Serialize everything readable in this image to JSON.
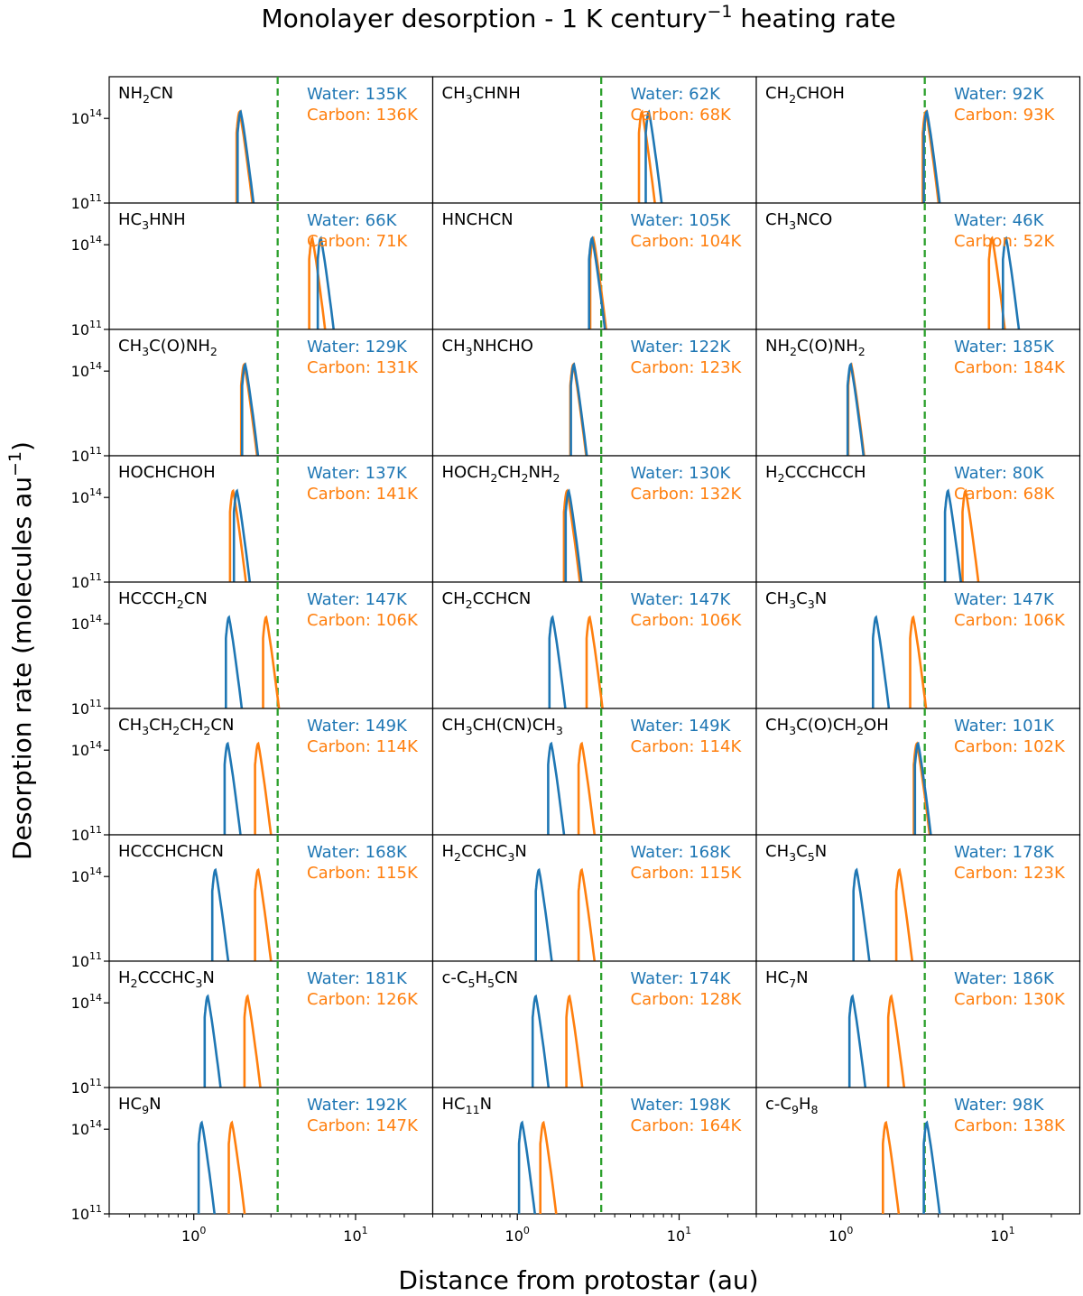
{
  "chart_data": {
    "type": "line",
    "title": "Monolayer desorption - 1 K century",
    "title_sup": "−1",
    "title_suffix": " heating rate",
    "xlabel": "Distance from protostar (au)",
    "ylabel": "Desorption rate (molecules au",
    "ylabel_sup": "−1",
    "ylabel_suffix": ")",
    "xscale": "log",
    "yscale": "log",
    "xlim": [
      0.3,
      30
    ],
    "ylim": [
      100000000000.0,
      3000000000000000.0
    ],
    "x_tick_labels": [
      {
        "base": "10",
        "exp": "0",
        "value": 1
      },
      {
        "base": "10",
        "exp": "1",
        "value": 10
      }
    ],
    "y_tick_labels": [
      {
        "base": "10",
        "exp": "14",
        "value": 100000000000000.0
      },
      {
        "base": "10",
        "exp": "11",
        "value": 100000000000.0
      }
    ],
    "grid": false,
    "layout": "9 rows x 3 columns, shared axes",
    "colors": {
      "water": "#1f77b4",
      "carbon": "#ff7f0e",
      "reference_line": "#2ca02c"
    },
    "reference_line": {
      "x": 3.3,
      "style": "dashed"
    },
    "series_labels": {
      "water": "Water",
      "carbon": "Carbon"
    },
    "panels": [
      {
        "molecule": [
          [
            "NH",
            ""
          ],
          [
            "2",
            "sub"
          ],
          [
            "CN",
            ""
          ]
        ],
        "water_temp": "135K",
        "carbon_temp": "136K",
        "water_peak": 1.95,
        "carbon_peak": 1.92
      },
      {
        "molecule": [
          [
            "CH",
            ""
          ],
          [
            "3",
            "sub"
          ],
          [
            "CHNH",
            ""
          ]
        ],
        "water_temp": "62K",
        "carbon_temp": "68K",
        "water_peak": 6.5,
        "carbon_peak": 5.9
      },
      {
        "molecule": [
          [
            "CH",
            ""
          ],
          [
            "2",
            "sub"
          ],
          [
            "CHOH",
            ""
          ]
        ],
        "water_temp": "92K",
        "carbon_temp": "93K",
        "water_peak": 3.4,
        "carbon_peak": 3.35
      },
      {
        "molecule": [
          [
            "HC",
            ""
          ],
          [
            "3",
            "sub"
          ],
          [
            "HNH",
            ""
          ]
        ],
        "water_temp": "66K",
        "carbon_temp": "71K",
        "water_peak": 6.1,
        "carbon_peak": 5.4
      },
      {
        "molecule": [
          [
            "HNCHCN",
            ""
          ]
        ],
        "water_temp": "105K",
        "carbon_temp": "104K",
        "water_peak": 2.9,
        "carbon_peak": 2.95
      },
      {
        "molecule": [
          [
            "CH",
            ""
          ],
          [
            "3",
            "sub"
          ],
          [
            "NCO",
            ""
          ]
        ],
        "water_temp": "46K",
        "carbon_temp": "52K",
        "water_peak": 10.5,
        "carbon_peak": 8.6
      },
      {
        "molecule": [
          [
            "CH",
            ""
          ],
          [
            "3",
            "sub"
          ],
          [
            "C(O)NH",
            ""
          ],
          [
            "2",
            "sub"
          ]
        ],
        "water_temp": "129K",
        "carbon_temp": "131K",
        "water_peak": 2.08,
        "carbon_peak": 2.05
      },
      {
        "molecule": [
          [
            "CH",
            ""
          ],
          [
            "3",
            "sub"
          ],
          [
            "NHCHO",
            ""
          ]
        ],
        "water_temp": "122K",
        "carbon_temp": "123K",
        "water_peak": 2.24,
        "carbon_peak": 2.22
      },
      {
        "molecule": [
          [
            "NH",
            ""
          ],
          [
            "2",
            "sub"
          ],
          [
            "C(O)NH",
            ""
          ],
          [
            "2",
            "sub"
          ]
        ],
        "water_temp": "185K",
        "carbon_temp": "184K",
        "water_peak": 1.15,
        "carbon_peak": 1.16
      },
      {
        "molecule": [
          [
            "HOCHCHOH",
            ""
          ]
        ],
        "water_temp": "137K",
        "carbon_temp": "141K",
        "water_peak": 1.85,
        "carbon_peak": 1.75
      },
      {
        "molecule": [
          [
            "HOCH",
            ""
          ],
          [
            "2",
            "sub"
          ],
          [
            "CH",
            ""
          ],
          [
            "2",
            "sub"
          ],
          [
            "NH",
            ""
          ],
          [
            "2",
            "sub"
          ]
        ],
        "water_temp": "130K",
        "carbon_temp": "132K",
        "water_peak": 2.08,
        "carbon_peak": 2.03
      },
      {
        "molecule": [
          [
            "H",
            ""
          ],
          [
            "2",
            "sub"
          ],
          [
            "CCCHCCH",
            ""
          ]
        ],
        "water_temp": "80K",
        "carbon_temp": "68K",
        "water_peak": 4.6,
        "carbon_peak": 5.9
      },
      {
        "molecule": [
          [
            "HCCCH",
            ""
          ],
          [
            "2",
            "sub"
          ],
          [
            "CN",
            ""
          ]
        ],
        "water_temp": "147K",
        "carbon_temp": "106K",
        "water_peak": 1.65,
        "carbon_peak": 2.8
      },
      {
        "molecule": [
          [
            "CH",
            ""
          ],
          [
            "2",
            "sub"
          ],
          [
            "CCHCN",
            ""
          ]
        ],
        "water_temp": "147K",
        "carbon_temp": "106K",
        "water_peak": 1.65,
        "carbon_peak": 2.8
      },
      {
        "molecule": [
          [
            "CH",
            ""
          ],
          [
            "3",
            "sub"
          ],
          [
            "C",
            ""
          ],
          [
            "3",
            "sub"
          ],
          [
            "N",
            ""
          ]
        ],
        "water_temp": "147K",
        "carbon_temp": "106K",
        "water_peak": 1.65,
        "carbon_peak": 2.8
      },
      {
        "molecule": [
          [
            "CH",
            ""
          ],
          [
            "3",
            "sub"
          ],
          [
            "CH",
            ""
          ],
          [
            "2",
            "sub"
          ],
          [
            "CH",
            ""
          ],
          [
            "2",
            "sub"
          ],
          [
            "CN",
            ""
          ]
        ],
        "water_temp": "149K",
        "carbon_temp": "114K",
        "water_peak": 1.62,
        "carbon_peak": 2.5
      },
      {
        "molecule": [
          [
            "CH",
            ""
          ],
          [
            "3",
            "sub"
          ],
          [
            "CH(CN)CH",
            ""
          ],
          [
            "3",
            "sub"
          ]
        ],
        "water_temp": "149K",
        "carbon_temp": "114K",
        "water_peak": 1.62,
        "carbon_peak": 2.5
      },
      {
        "molecule": [
          [
            "CH",
            ""
          ],
          [
            "3",
            "sub"
          ],
          [
            "C(O)CH",
            ""
          ],
          [
            "2",
            "sub"
          ],
          [
            "OH",
            ""
          ]
        ],
        "water_temp": "101K",
        "carbon_temp": "102K",
        "water_peak": 3.0,
        "carbon_peak": 2.95
      },
      {
        "molecule": [
          [
            "HCCCHCHCN",
            ""
          ]
        ],
        "water_temp": "168K",
        "carbon_temp": "115K",
        "water_peak": 1.36,
        "carbon_peak": 2.5
      },
      {
        "molecule": [
          [
            "H",
            ""
          ],
          [
            "2",
            "sub"
          ],
          [
            "CCHC",
            ""
          ],
          [
            "3",
            "sub"
          ],
          [
            "N",
            ""
          ]
        ],
        "water_temp": "168K",
        "carbon_temp": "115K",
        "water_peak": 1.36,
        "carbon_peak": 2.5
      },
      {
        "molecule": [
          [
            "CH",
            ""
          ],
          [
            "3",
            "sub"
          ],
          [
            "C",
            ""
          ],
          [
            "5",
            "sub"
          ],
          [
            "N",
            ""
          ]
        ],
        "water_temp": "178K",
        "carbon_temp": "123K",
        "water_peak": 1.25,
        "carbon_peak": 2.3
      },
      {
        "molecule": [
          [
            "H",
            ""
          ],
          [
            "2",
            "sub"
          ],
          [
            "CCCHC",
            ""
          ],
          [
            "3",
            "sub"
          ],
          [
            "N",
            ""
          ]
        ],
        "water_temp": "181K",
        "carbon_temp": "126K",
        "water_peak": 1.22,
        "carbon_peak": 2.15
      },
      {
        "molecule": [
          [
            "c-C",
            ""
          ],
          [
            "5",
            "sub"
          ],
          [
            "H",
            ""
          ],
          [
            "5",
            "sub"
          ],
          [
            "CN",
            ""
          ]
        ],
        "water_temp": "174K",
        "carbon_temp": "128K",
        "water_peak": 1.3,
        "carbon_peak": 2.1
      },
      {
        "molecule": [
          [
            "HC",
            ""
          ],
          [
            "7",
            "sub"
          ],
          [
            "N",
            ""
          ]
        ],
        "water_temp": "186K",
        "carbon_temp": "130K",
        "water_peak": 1.18,
        "carbon_peak": 2.05
      },
      {
        "molecule": [
          [
            "HC",
            ""
          ],
          [
            "9",
            "sub"
          ],
          [
            "N",
            ""
          ]
        ],
        "water_temp": "192K",
        "carbon_temp": "147K",
        "water_peak": 1.12,
        "carbon_peak": 1.72
      },
      {
        "molecule": [
          [
            "HC",
            ""
          ],
          [
            "11",
            "sub"
          ],
          [
            "N",
            ""
          ]
        ],
        "water_temp": "198K",
        "carbon_temp": "164K",
        "water_peak": 1.07,
        "carbon_peak": 1.45
      },
      {
        "molecule": [
          [
            "c-C",
            ""
          ],
          [
            "9",
            "sub"
          ],
          [
            "H",
            ""
          ],
          [
            "8",
            "sub"
          ]
        ],
        "water_temp": "98K",
        "carbon_temp": "138K",
        "water_peak": 3.4,
        "carbon_peak": 1.9
      }
    ]
  }
}
